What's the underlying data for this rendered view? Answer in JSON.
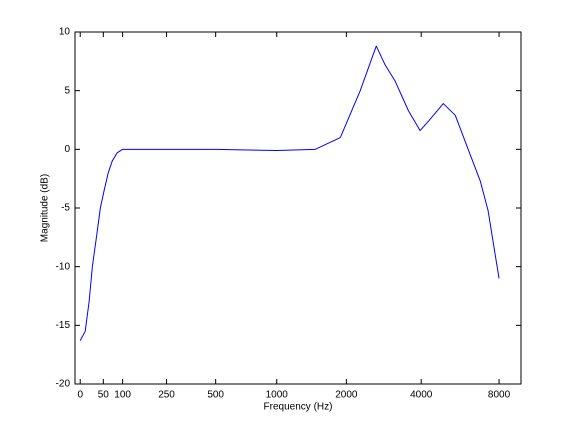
{
  "chart_data": {
    "type": "line",
    "x_label": "Frequency (Hz)",
    "y_label": "Magnitude (dB)",
    "xscale": "erb",
    "x": [
      0,
      10,
      18,
      25,
      34,
      43,
      52,
      62,
      72,
      85,
      100,
      150,
      500,
      1000,
      1480,
      1888,
      2281,
      2650,
      2877,
      3157,
      3560,
      3960,
      4270,
      4880,
      5430,
      6090,
      6780,
      7260,
      8000
    ],
    "series": [
      {
        "color": "#0000ff",
        "values": [
          -16.3,
          -15.5,
          -13,
          -10,
          -7.5,
          -5,
          -3.5,
          -2,
          -1,
          -0.3,
          0,
          0,
          0,
          -0.1,
          0,
          1,
          5,
          8.8,
          7.2,
          5.8,
          3.3,
          1.6,
          2.4,
          3.9,
          2.9,
          0,
          -2.7,
          -5.2,
          -11
        ]
      }
    ],
    "xlim": [
      -10,
      9700
    ],
    "xticks": [
      0,
      50,
      100,
      250,
      500,
      1000,
      2000,
      4000,
      8000
    ],
    "ylim": [
      -20,
      10
    ],
    "yticks": [
      -20,
      -15,
      -10,
      -5,
      0,
      5,
      10
    ]
  }
}
